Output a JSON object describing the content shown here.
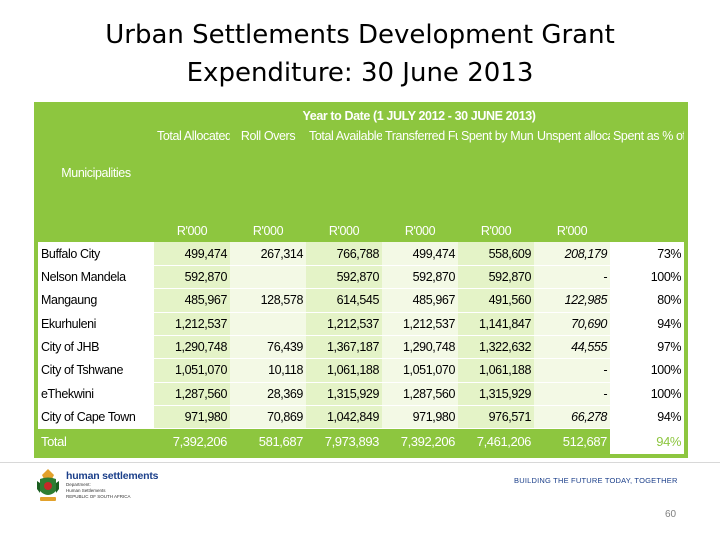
{
  "slide": {
    "title_line1": "Urban Settlements Development Grant",
    "title_line2": "Expenditure: 30 June 2013",
    "page_number": "60"
  },
  "table": {
    "period_label": "Year to Date (1 JULY 2012 - 30 JUNE 2013)",
    "municipalities_header": "Municipalities",
    "headers": [
      "Total Allocated Funds",
      "Roll Overs",
      "Total Available Funds",
      "Transferred Funds",
      "Spent by Municipalities",
      "Unspent allocation",
      "Spent as % of Total Available"
    ],
    "units": [
      "R'000",
      "R'000",
      "R'000",
      "R'000",
      "R'000",
      "R'000",
      ""
    ],
    "rows": [
      {
        "municipality": "Buffalo City",
        "total_allocated": "499,474",
        "roll_overs": "267,314",
        "total_available": "766,788",
        "transferred": "499,474",
        "spent": "558,609",
        "unspent": "208,179",
        "spent_pct": "73%"
      },
      {
        "municipality": "Nelson Mandela",
        "total_allocated": "592,870",
        "roll_overs": "",
        "total_available": "592,870",
        "transferred": "592,870",
        "spent": "592,870",
        "unspent": "-",
        "spent_pct": "100%"
      },
      {
        "municipality": "Mangaung",
        "total_allocated": "485,967",
        "roll_overs": "128,578",
        "total_available": "614,545",
        "transferred": "485,967",
        "spent": "491,560",
        "unspent": "122,985",
        "spent_pct": "80%"
      },
      {
        "municipality": "Ekurhuleni",
        "total_allocated": "1,212,537",
        "roll_overs": "",
        "total_available": "1,212,537",
        "transferred": "1,212,537",
        "spent": "1,141,847",
        "unspent": "70,690",
        "spent_pct": "94%"
      },
      {
        "municipality": "City of JHB",
        "total_allocated": "1,290,748",
        "roll_overs": "76,439",
        "total_available": "1,367,187",
        "transferred": "1,290,748",
        "spent": "1,322,632",
        "unspent": "44,555",
        "spent_pct": "97%"
      },
      {
        "municipality": "City of Tshwane",
        "total_allocated": "1,051,070",
        "roll_overs": "10,118",
        "total_available": "1,061,188",
        "transferred": "1,051,070",
        "spent": "1,061,188",
        "unspent": "-",
        "spent_pct": "100%"
      },
      {
        "municipality": "eThekwini",
        "total_allocated": "1,287,560",
        "roll_overs": "28,369",
        "total_available": "1,315,929",
        "transferred": "1,287,560",
        "spent": "1,315,929",
        "unspent": "-",
        "spent_pct": "100%"
      },
      {
        "municipality": "City of Cape Town",
        "total_allocated": "971,980",
        "roll_overs": "70,869",
        "total_available": "1,042,849",
        "transferred": "971,980",
        "spent": "976,571",
        "unspent": "66,278",
        "spent_pct": "94%"
      }
    ],
    "total": {
      "label": "Total",
      "total_allocated": "7,392,206",
      "roll_overs": "581,687",
      "total_available": "7,973,893",
      "transferred": "7,392,206",
      "spent": "7,461,206",
      "unspent": "512,687",
      "spent_pct": "94%"
    }
  },
  "footer": {
    "logo_name": "human settlements",
    "logo_line1": "Department:",
    "logo_line2": "Human Settlements",
    "logo_line3": "REPUBLIC OF SOUTH AFRICA",
    "tagline": "BUILDING THE FUTURE TODAY, TOGETHER"
  },
  "colors": {
    "accent_green": "#8dc63f",
    "light_green": "#e4f3c7",
    "brand_blue": "#1b3f8a"
  },
  "icons": [
    "coat-of-arms-icon"
  ]
}
